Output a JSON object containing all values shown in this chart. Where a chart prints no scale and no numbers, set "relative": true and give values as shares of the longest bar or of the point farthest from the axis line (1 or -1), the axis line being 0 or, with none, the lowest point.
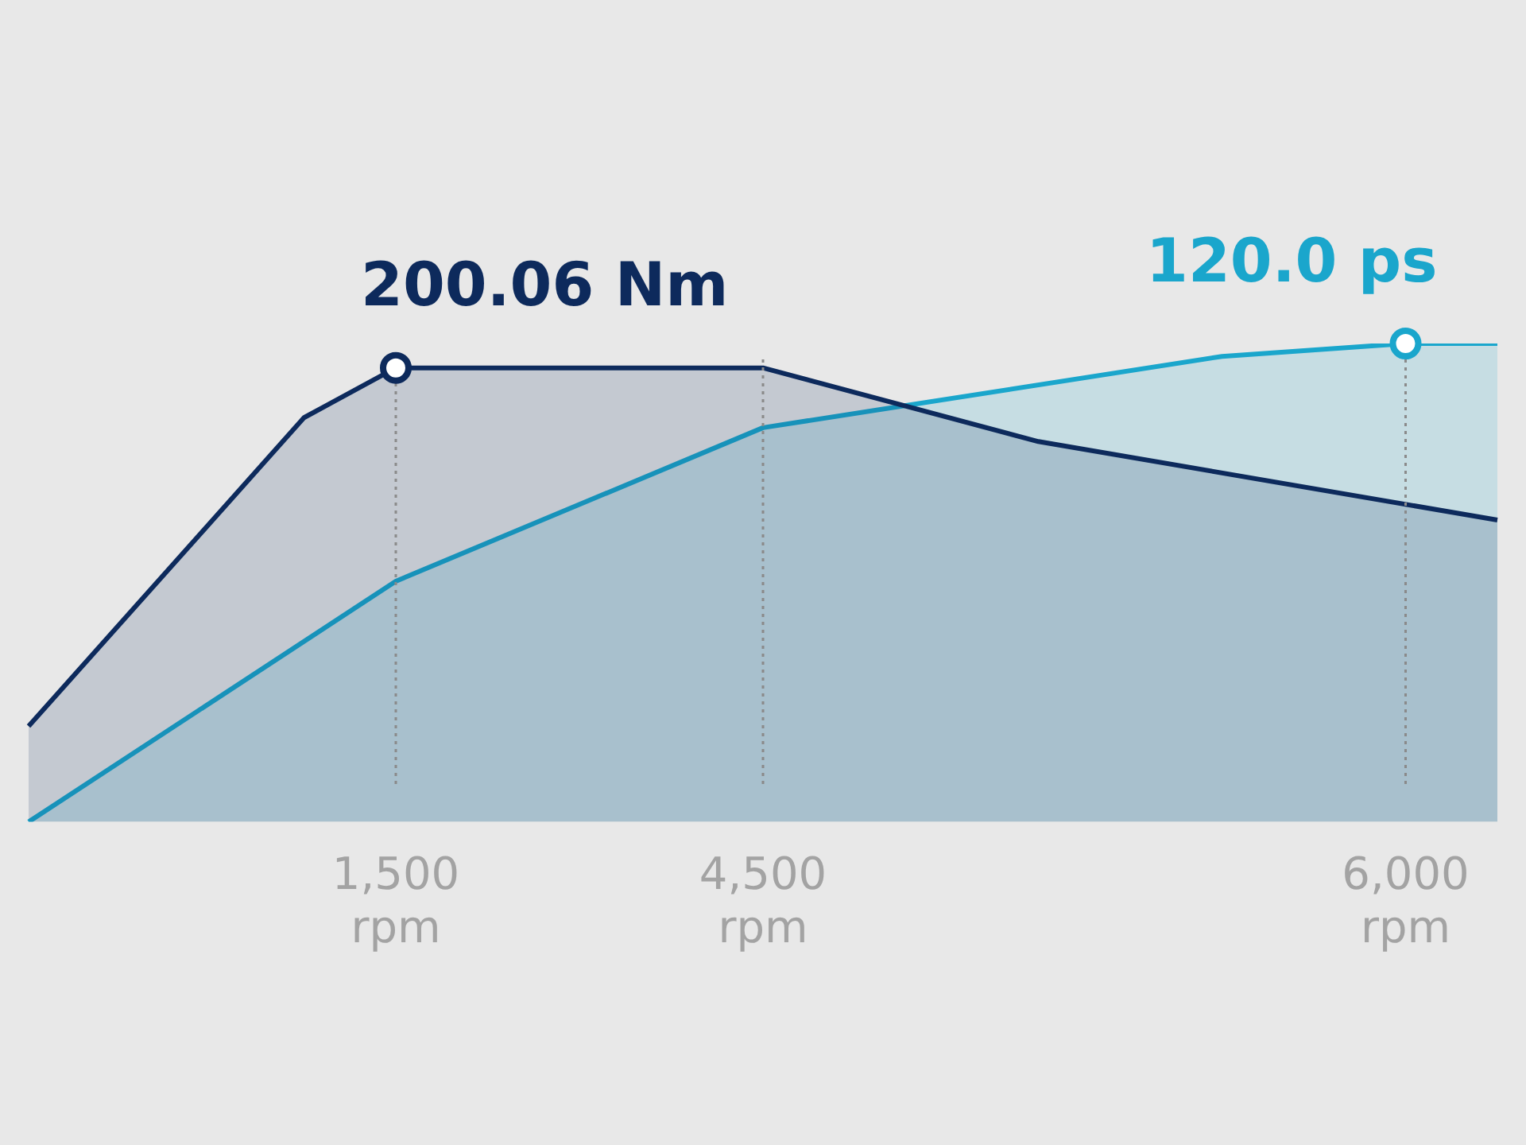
{
  "chart_data": {
    "type": "area",
    "relative": true,
    "legend": false,
    "grid": false,
    "categories": [
      null,
      null,
      null,
      null,
      "1,500 rpm",
      null,
      null,
      null,
      "4,500 rpm",
      null,
      null,
      null,
      null,
      null,
      null,
      "6,000 rpm",
      null
    ],
    "series": [
      {
        "color": "#0d2a5c",
        "values": [
          0.2,
          null,
          null,
          0.845,
          0.949,
          null,
          null,
          null,
          0.949,
          null,
          null,
          0.795,
          null,
          null,
          null,
          null,
          0.631
        ]
      },
      {
        "color": "#1aa6cc",
        "values": [
          0,
          null,
          null,
          null,
          0.503,
          null,
          null,
          null,
          0.824,
          null,
          null,
          null,
          null,
          0.973,
          null,
          1,
          1
        ]
      }
    ],
    "annotations": [
      {
        "text": "200.06 Nm",
        "x": "1,500 rpm",
        "y": 0.949
      },
      {
        "text": "120.0 ps",
        "x": "6,000 rpm",
        "y": 1
      }
    ],
    "ref_lines": [
      {
        "axis": "x",
        "value": "1,500 rpm",
        "color": "#8a8a8a",
        "line_style": "dotted"
      },
      {
        "axis": "x",
        "value": "4,500 rpm",
        "color": "#8a8a8a",
        "line_style": "dotted"
      },
      {
        "axis": "x",
        "value": "6,000 rpm",
        "color": "#8a8a8a",
        "line_style": "dotted"
      }
    ]
  }
}
